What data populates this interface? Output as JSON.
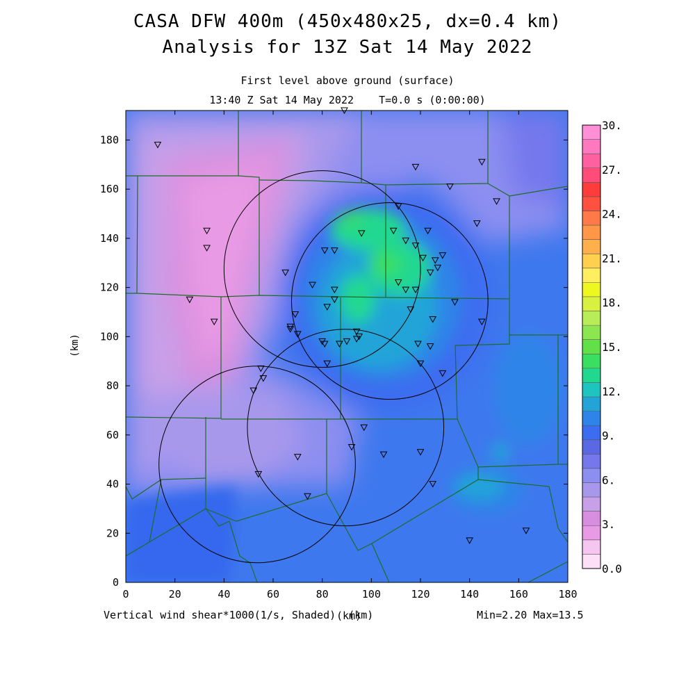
{
  "header": {
    "title_line1": "CASA DFW 400m (450x480x25, dx=0.4 km)",
    "title_line2": "Analysis for 13Z Sat 14 May 2022",
    "level_label": "First level above ground (surface)",
    "time_label": "13:40 Z Sat 14 May 2022    T=0.0 s (0:00:00)"
  },
  "footer": {
    "field_label": "Vertical wind shear*1000(1/s, Shaded)  (km)",
    "minmax": "Min=2.20 Max=13.5"
  },
  "axes": {
    "xlabel": "(km)",
    "ylabel": "(km)",
    "xlim": [
      0,
      180
    ],
    "ylim": [
      0,
      192
    ],
    "xticks": [
      "0",
      "20",
      "40",
      "60",
      "80",
      "100",
      "120",
      "140",
      "160",
      "180"
    ],
    "yticks": [
      "0",
      "20",
      "40",
      "60",
      "80",
      "100",
      "120",
      "140",
      "160",
      "180"
    ]
  },
  "colorbar": {
    "labels": [
      "0.0",
      "3.",
      "6.",
      "9.",
      "12.",
      "15.",
      "18.",
      "21.",
      "24.",
      "27.",
      "30."
    ],
    "colors": [
      "#fde0f8",
      "#f4c6f0",
      "#e89ae4",
      "#d88ede",
      "#c8a0e8",
      "#a898ec",
      "#8c8ef0",
      "#7478ec",
      "#5a68e4",
      "#3c6cf0",
      "#2e84e8",
      "#22a4d8",
      "#1ec4c0",
      "#20d890",
      "#3ade60",
      "#62e048",
      "#8ce650",
      "#b8ec58",
      "#d8f040",
      "#eef820",
      "#ffee60",
      "#ffd050",
      "#ffb04c",
      "#ff9648",
      "#ff7a48",
      "#ff5040",
      "#ff3c3c",
      "#ff4c78",
      "#ff60a0",
      "#ff78c0",
      "#ff90d8"
    ]
  },
  "radars": [
    {
      "cx": 80,
      "cy": 127.5
    },
    {
      "cx": 107.5,
      "cy": 114.5
    },
    {
      "cx": 53.5,
      "cy": 48
    },
    {
      "cx": 89.5,
      "cy": 63
    }
  ],
  "radar_radius_km": 40,
  "stations": [
    [
      13,
      178
    ],
    [
      89,
      192
    ],
    [
      118,
      169
    ],
    [
      145,
      171
    ],
    [
      132,
      161
    ],
    [
      151,
      155
    ],
    [
      111,
      153
    ],
    [
      143,
      146
    ],
    [
      33,
      143
    ],
    [
      33,
      136
    ],
    [
      96,
      142
    ],
    [
      109,
      143
    ],
    [
      114,
      139
    ],
    [
      118,
      137
    ],
    [
      123,
      143
    ],
    [
      81,
      135
    ],
    [
      85,
      135
    ],
    [
      121,
      132
    ],
    [
      126,
      131
    ],
    [
      129,
      133
    ],
    [
      127,
      128
    ],
    [
      124,
      126
    ],
    [
      65,
      126
    ],
    [
      76,
      121
    ],
    [
      111,
      122
    ],
    [
      114,
      119
    ],
    [
      118,
      119
    ],
    [
      85,
      119
    ],
    [
      85,
      115
    ],
    [
      82,
      112
    ],
    [
      116,
      111
    ],
    [
      134,
      114
    ],
    [
      26,
      115
    ],
    [
      36,
      106
    ],
    [
      69,
      109
    ],
    [
      67,
      104
    ],
    [
      67,
      103
    ],
    [
      70,
      101
    ],
    [
      125,
      107
    ],
    [
      145,
      106
    ],
    [
      94,
      102
    ],
    [
      95,
      100
    ],
    [
      94,
      99
    ],
    [
      90,
      98
    ],
    [
      87,
      97
    ],
    [
      80,
      98
    ],
    [
      81,
      97
    ],
    [
      119,
      97
    ],
    [
      124,
      96
    ],
    [
      82,
      89
    ],
    [
      120,
      89
    ],
    [
      129,
      85
    ],
    [
      55,
      87
    ],
    [
      56,
      83
    ],
    [
      52,
      78
    ],
    [
      97,
      63
    ],
    [
      92,
      55
    ],
    [
      105,
      52
    ],
    [
      120,
      53
    ],
    [
      70,
      51
    ],
    [
      54,
      44
    ],
    [
      125,
      40
    ],
    [
      74,
      35
    ],
    [
      140,
      17
    ],
    [
      163,
      21
    ]
  ]
}
